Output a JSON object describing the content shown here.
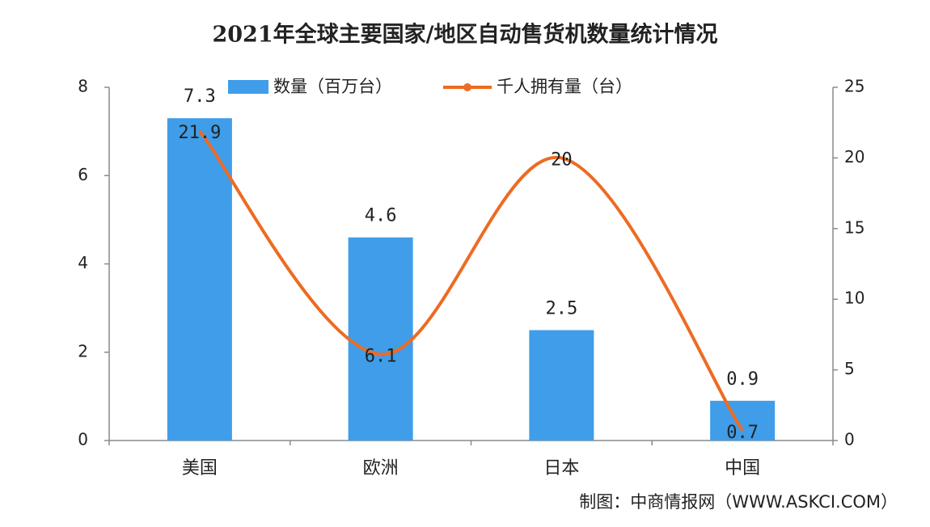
{
  "chart_data": {
    "type": "bar_line",
    "title": "2021年全球主要国家/地区自动售货机数量统计情况",
    "source": "制图：中商情报网（WWW.ASKCI.COM）",
    "categories": [
      "美国",
      "欧洲",
      "日本",
      "中国"
    ],
    "series": [
      {
        "name": "数量（百万台）",
        "type": "bar",
        "color": "#3f9de9",
        "values": [
          7.3,
          4.6,
          2.5,
          0.9
        ]
      },
      {
        "name": "千人拥有量（台）",
        "type": "line",
        "axis": "y2",
        "color": "#ed6b22",
        "values": [
          21.9,
          6.1,
          20,
          0.7
        ]
      }
    ],
    "ylim": [
      0,
      8
    ],
    "yticks": [
      0,
      2,
      4,
      6,
      8
    ],
    "y2lim": [
      0,
      25
    ],
    "y2ticks": [
      0,
      5,
      10,
      15,
      20,
      25
    ],
    "grid": false,
    "legend": "top"
  }
}
